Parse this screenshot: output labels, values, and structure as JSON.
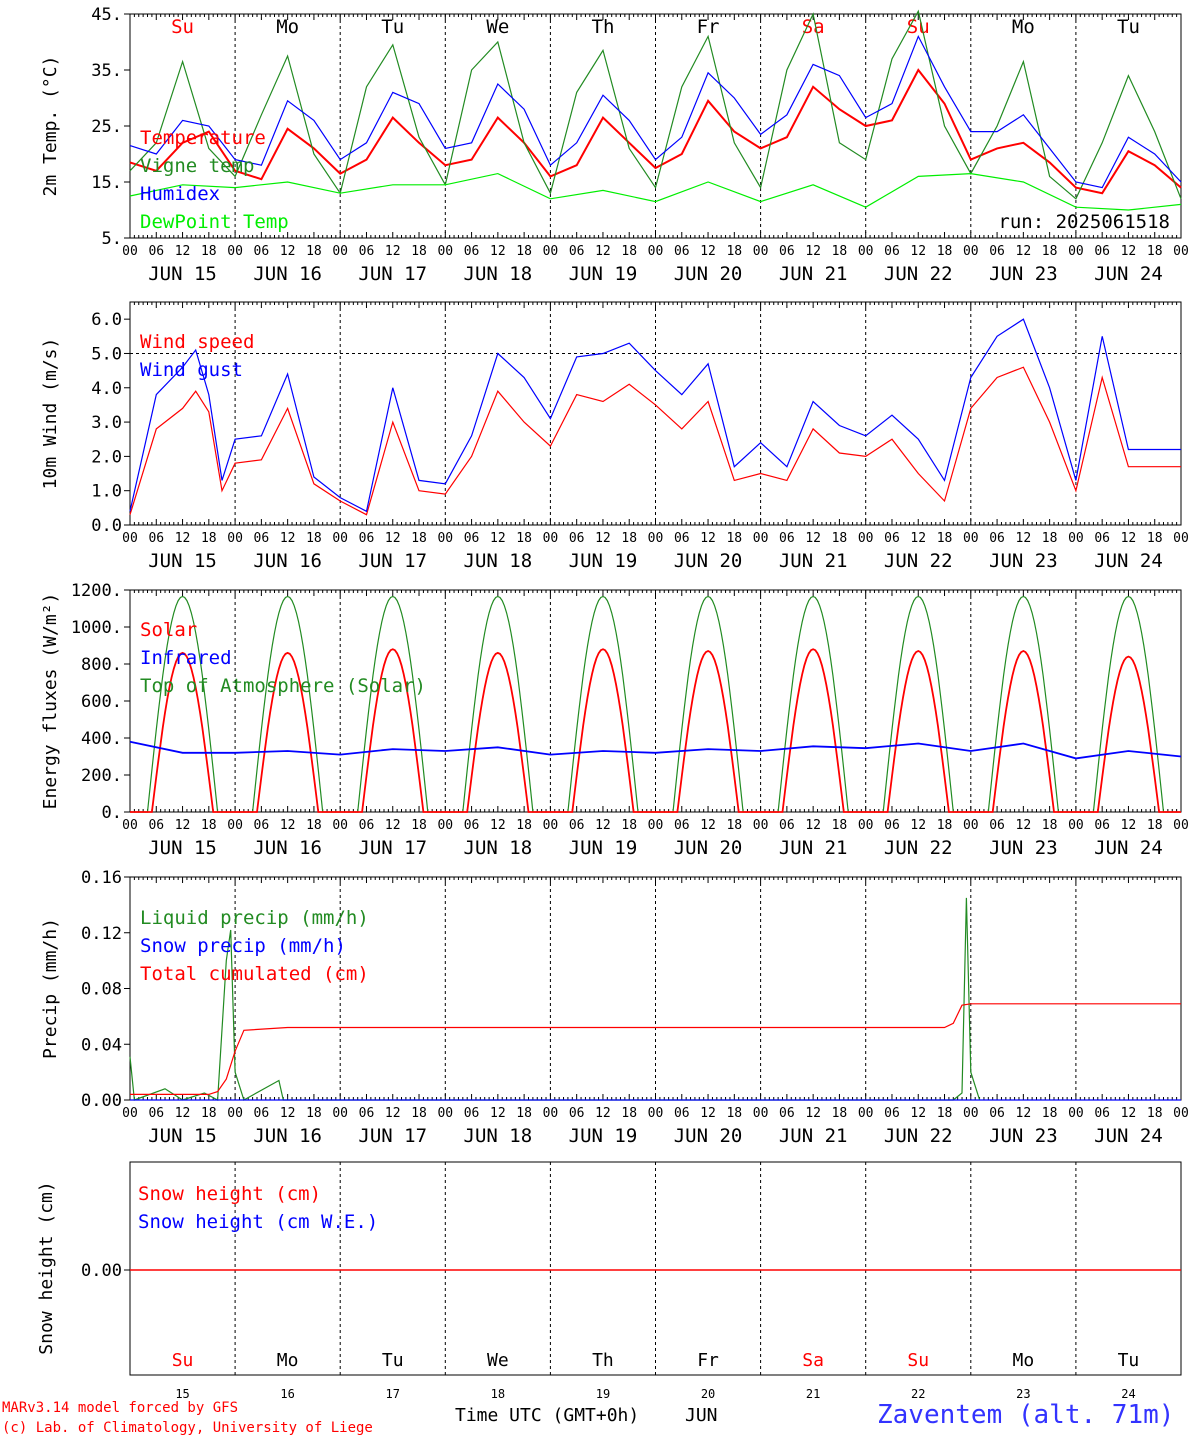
{
  "run_label": "run: 2025061518",
  "footer": {
    "credit1": "MARv3.14 model forced by GFS",
    "credit2": "(c) Lab. of Climatology, University of Liege",
    "xlabel": "Time UTC (GMT+0h)",
    "xunit": "JUN",
    "station": "Zaventem (alt. 71m)"
  },
  "day_names": [
    "Su",
    "Mo",
    "Tu",
    "We",
    "Th",
    "Fr",
    "Sa",
    "Su",
    "Mo",
    "Tu"
  ],
  "day_name_colors": [
    "#ff0000",
    "#000000",
    "#000000",
    "#000000",
    "#000000",
    "#000000",
    "#ff0000",
    "#ff0000",
    "#000000",
    "#000000"
  ],
  "date_labels": [
    "JUN 15",
    "JUN 16",
    "JUN 17",
    "JUN 18",
    "JUN 19",
    "JUN 20",
    "JUN 21",
    "JUN 22",
    "JUN 23",
    "JUN 24"
  ],
  "day_numbers": [
    "15",
    "16",
    "17",
    "18",
    "19",
    "20",
    "21",
    "22",
    "23",
    "24"
  ],
  "hour_ticks": [
    "00",
    "06",
    "12",
    "18"
  ],
  "chart_data": [
    {
      "type": "line",
      "ylabel": "2m Temp. (°C)",
      "ylim": [
        5,
        45
      ],
      "yticks": [
        "5.",
        "15.",
        "25.",
        "35.",
        "45."
      ],
      "x_hours_from": "2025-06-15T00:00Z",
      "series": [
        {
          "name": "Temperature",
          "color": "#ff0000",
          "x": [
            0,
            6,
            12,
            18,
            24,
            30,
            36,
            42,
            48,
            54,
            60,
            66,
            72,
            78,
            84,
            90,
            96,
            102,
            108,
            114,
            120,
            126,
            132,
            138,
            144,
            150,
            156,
            162,
            168,
            174,
            180,
            186,
            192,
            198,
            204,
            210,
            216,
            222,
            228,
            234,
            240
          ],
          "values": [
            18.5,
            17,
            22,
            24,
            17,
            15.5,
            24.5,
            21,
            16.5,
            19,
            26.5,
            22,
            18,
            19,
            26.5,
            22,
            16,
            18,
            26.5,
            22,
            17.5,
            20,
            29.5,
            24,
            21,
            23,
            32,
            28,
            25,
            26,
            35,
            29,
            19,
            21,
            22,
            18.5,
            14,
            13,
            20.5,
            18,
            14
          ]
        },
        {
          "name": "Vigne temp",
          "color": "#228b22",
          "x": [
            0,
            6,
            12,
            18,
            24,
            30,
            36,
            42,
            48,
            54,
            60,
            66,
            72,
            78,
            84,
            90,
            96,
            102,
            108,
            114,
            120,
            126,
            132,
            138,
            144,
            150,
            156,
            162,
            168,
            174,
            180,
            186,
            192,
            198,
            204,
            210,
            216,
            222,
            228,
            234,
            240
          ],
          "values": [
            17,
            22,
            36.5,
            21,
            16,
            27,
            37.5,
            20,
            13,
            32,
            39.5,
            23,
            14.5,
            35,
            40,
            22,
            13,
            31,
            38.5,
            21,
            14,
            32,
            41,
            22,
            14,
            35,
            45,
            22,
            19,
            37,
            45.5,
            25,
            16.5,
            25,
            36.5,
            16,
            12,
            22,
            34,
            24,
            12
          ]
        },
        {
          "name": "Humidex",
          "color": "#0000ff",
          "x": [
            0,
            6,
            12,
            18,
            24,
            30,
            36,
            42,
            48,
            54,
            60,
            66,
            72,
            78,
            84,
            90,
            96,
            102,
            108,
            114,
            120,
            126,
            132,
            138,
            144,
            150,
            156,
            162,
            168,
            174,
            180,
            186,
            192,
            198,
            204,
            210,
            216,
            222,
            228,
            234,
            240
          ],
          "values": [
            21.5,
            20,
            26,
            25,
            19,
            18,
            29.5,
            26,
            19,
            22,
            31,
            29,
            21,
            22,
            32.5,
            28,
            18,
            22,
            30.5,
            26,
            19,
            23,
            34.5,
            30,
            23.5,
            27,
            36,
            34,
            26.5,
            29,
            41,
            32,
            24,
            24,
            27,
            21,
            15,
            14,
            23,
            20,
            15
          ]
        },
        {
          "name": "DewPoint Temp",
          "color": "#00ee00",
          "x": [
            0,
            12,
            24,
            36,
            48,
            60,
            72,
            84,
            96,
            108,
            120,
            132,
            144,
            156,
            168,
            180,
            192,
            204,
            216,
            228,
            240
          ],
          "values": [
            12.5,
            14.5,
            14,
            15,
            13,
            14.5,
            14.5,
            16.5,
            12,
            13.5,
            11.5,
            15,
            11.5,
            14.5,
            10.5,
            16,
            16.5,
            15,
            10.5,
            10,
            11
          ]
        }
      ]
    },
    {
      "type": "line",
      "ylabel": "10m Wind (m/s)",
      "ylim": [
        0,
        6.5
      ],
      "yticks": [
        "0.0",
        "1.0",
        "2.0",
        "3.0",
        "4.0",
        "5.0",
        "6.0"
      ],
      "ref_line": 5.0,
      "x_hours_from": "2025-06-15T00:00Z",
      "series": [
        {
          "name": "Wind speed",
          "color": "#ff0000",
          "x": [
            0,
            6,
            12,
            15,
            18,
            21,
            24,
            30,
            36,
            42,
            48,
            54,
            60,
            66,
            72,
            78,
            84,
            90,
            96,
            102,
            108,
            114,
            120,
            126,
            132,
            138,
            144,
            150,
            156,
            162,
            168,
            174,
            180,
            186,
            192,
            198,
            204,
            210,
            216,
            222,
            228,
            234,
            240
          ],
          "values": [
            0.3,
            2.8,
            3.4,
            3.9,
            3.3,
            1.0,
            1.8,
            1.9,
            3.4,
            1.2,
            0.7,
            0.3,
            3.0,
            1.0,
            0.9,
            2.0,
            3.9,
            3.0,
            2.3,
            3.8,
            3.6,
            4.1,
            3.5,
            2.8,
            3.6,
            1.3,
            1.5,
            1.3,
            2.8,
            2.1,
            2.0,
            2.5,
            1.5,
            0.7,
            3.4,
            4.3,
            4.6,
            3.0,
            1.0,
            4.3,
            1.7,
            1.7,
            1.7
          ]
        },
        {
          "name": "Wind gust",
          "color": "#0000ff",
          "x": [
            0,
            6,
            12,
            15,
            18,
            21,
            24,
            30,
            36,
            42,
            48,
            54,
            60,
            66,
            72,
            78,
            84,
            90,
            96,
            102,
            108,
            114,
            120,
            126,
            132,
            138,
            144,
            150,
            156,
            162,
            168,
            174,
            180,
            186,
            192,
            198,
            204,
            210,
            216,
            222,
            228,
            234,
            240
          ],
          "values": [
            0.4,
            3.8,
            4.6,
            5.1,
            3.8,
            1.3,
            2.5,
            2.6,
            4.4,
            1.4,
            0.8,
            0.4,
            4.0,
            1.3,
            1.2,
            2.6,
            5.0,
            4.3,
            3.1,
            4.9,
            5.0,
            5.3,
            4.5,
            3.8,
            4.7,
            1.7,
            2.4,
            1.7,
            3.6,
            2.9,
            2.6,
            3.2,
            2.5,
            1.3,
            4.3,
            5.5,
            6.0,
            4.0,
            1.3,
            5.5,
            2.2,
            2.2,
            2.2
          ]
        }
      ]
    },
    {
      "type": "line",
      "ylabel": "Energy fluxes (W/m²)",
      "ylim": [
        0,
        1200
      ],
      "yticks": [
        "0.",
        "200.",
        "400.",
        "600.",
        "800.",
        "1000.",
        "1200."
      ],
      "x_hours_from": "2025-06-15T00:00Z",
      "series": [
        {
          "name": "Solar",
          "color": "#ff0000",
          "peak_values": [
            860,
            860,
            880,
            860,
            880,
            870,
            880,
            870,
            870,
            840
          ]
        },
        {
          "name": "Infrared",
          "color": "#0000ff",
          "x": [
            0,
            12,
            24,
            36,
            48,
            60,
            72,
            84,
            96,
            108,
            120,
            132,
            144,
            156,
            168,
            180,
            192,
            204,
            216,
            228,
            240
          ],
          "values": [
            380,
            320,
            320,
            330,
            310,
            340,
            330,
            350,
            310,
            330,
            320,
            340,
            330,
            355,
            345,
            370,
            330,
            370,
            290,
            330,
            300
          ]
        },
        {
          "name": "Top of Atmosphere (Solar)",
          "color": "#228b22",
          "peak_value": 1165
        }
      ]
    },
    {
      "type": "line",
      "ylabel": "Precip (mm/h)",
      "ylim": [
        0,
        0.16
      ],
      "yticks": [
        "0.00",
        "0.04",
        "0.08",
        "0.12",
        "0.16"
      ],
      "x_hours_from": "2025-06-15T00:00Z",
      "series": [
        {
          "name": "Liquid precip (mm/h)",
          "color": "#228b22",
          "x": [
            0,
            1,
            8,
            12,
            17,
            20,
            22,
            23,
            24,
            26,
            34,
            35,
            36,
            188,
            190,
            191,
            192,
            194
          ],
          "values": [
            0.031,
            0.0,
            0.008,
            0.0,
            0.005,
            0.0,
            0.1,
            0.122,
            0.02,
            0.0,
            0.014,
            0.0,
            0.0,
            0.0,
            0.005,
            0.145,
            0.02,
            0.0
          ]
        },
        {
          "name": "Snow precip (mm/h)",
          "color": "#0000ff",
          "x": [
            0,
            240
          ],
          "values": [
            0,
            0
          ]
        },
        {
          "name": "Total cumulated (cm)",
          "color": "#ff0000",
          "x": [
            0,
            18,
            20,
            22,
            24,
            26,
            36,
            186,
            188,
            190,
            192,
            240
          ],
          "values": [
            0.004,
            0.004,
            0.006,
            0.015,
            0.035,
            0.05,
            0.052,
            0.052,
            0.055,
            0.068,
            0.069,
            0.069
          ]
        }
      ]
    },
    {
      "type": "line",
      "ylabel": "Snow height (cm)",
      "ytick": "0.00",
      "series": [
        {
          "name": "Snow height (cm)",
          "color": "#ff0000",
          "x": [
            0,
            240
          ],
          "values": [
            0,
            0
          ]
        },
        {
          "name": "Snow height (cm W.E.)",
          "color": "#0000ff",
          "x": [
            0,
            240
          ],
          "values": [
            0,
            0
          ]
        }
      ]
    }
  ]
}
